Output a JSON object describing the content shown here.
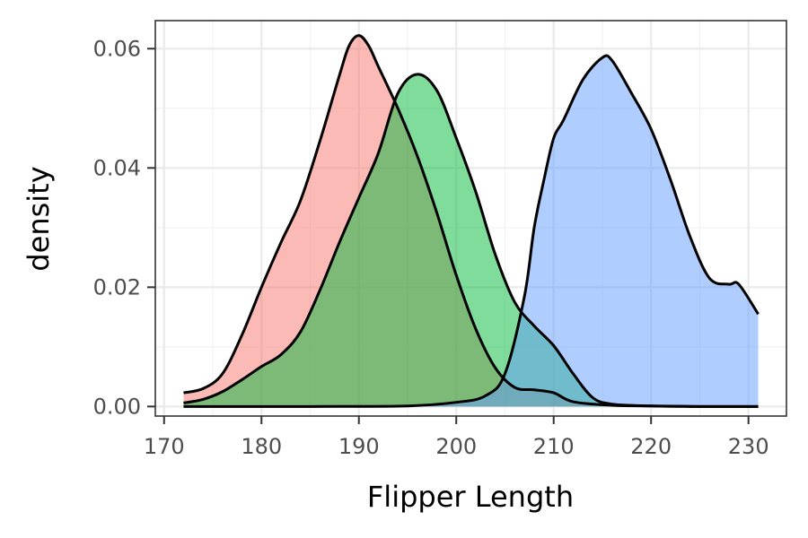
{
  "chart_data": {
    "type": "area",
    "xlabel": "Flipper Length",
    "ylabel": "density",
    "xlim": [
      169.1,
      233.9
    ],
    "ylim": [
      -0.0016,
      0.0647
    ],
    "x_ticks": [
      170,
      180,
      190,
      200,
      210,
      220,
      230
    ],
    "x_tick_labels": [
      "170",
      "180",
      "190",
      "200",
      "210",
      "220",
      "230"
    ],
    "y_ticks": [
      0,
      0.02,
      0.04,
      0.06
    ],
    "y_tick_labels": [
      "0.00",
      "0.02",
      "0.04",
      "0.06"
    ],
    "grid": true,
    "legend": "none",
    "fill_opacity": 0.5,
    "series": [
      {
        "color": "#F8766D",
        "x": [
          172,
          174,
          176,
          178,
          180,
          182,
          184,
          186,
          188,
          189,
          190,
          191,
          192,
          194,
          196,
          198,
          200,
          202,
          204,
          206,
          208,
          210,
          212,
          216,
          220,
          225,
          231
        ],
        "y": [
          0.0023,
          0.003,
          0.0055,
          0.012,
          0.02,
          0.0275,
          0.0345,
          0.0445,
          0.0555,
          0.0605,
          0.0622,
          0.0605,
          0.057,
          0.05,
          0.042,
          0.0325,
          0.022,
          0.013,
          0.0065,
          0.0032,
          0.0028,
          0.0023,
          0.0008,
          0.0002,
          0.0001,
          0.0,
          0.0
        ]
      },
      {
        "color": "#00BA38",
        "x": [
          172,
          174,
          176,
          178,
          180,
          182,
          184,
          186,
          188,
          190,
          192,
          194,
          196,
          198,
          200,
          202,
          204,
          206,
          208,
          210,
          212,
          214,
          216,
          220,
          225,
          231
        ],
        "y": [
          0.0006,
          0.0012,
          0.0025,
          0.0045,
          0.0067,
          0.0087,
          0.0125,
          0.0195,
          0.0275,
          0.035,
          0.0425,
          0.0525,
          0.0557,
          0.053,
          0.045,
          0.036,
          0.0255,
          0.0175,
          0.0135,
          0.0102,
          0.0055,
          0.0015,
          0.0004,
          0.0001,
          0.0,
          0.0
        ]
      },
      {
        "color": "#619CFF",
        "x": [
          172,
          185,
          195,
          200,
          203,
          205,
          207,
          208,
          209,
          210,
          211,
          213,
          215,
          216,
          218,
          220,
          222,
          224,
          226,
          228,
          229,
          231
        ],
        "y": [
          0.0,
          0.0,
          0.0001,
          0.0007,
          0.0018,
          0.0055,
          0.0185,
          0.03,
          0.038,
          0.045,
          0.048,
          0.0548,
          0.0585,
          0.058,
          0.0525,
          0.0465,
          0.038,
          0.0285,
          0.0215,
          0.0205,
          0.0205,
          0.0155
        ]
      }
    ]
  }
}
